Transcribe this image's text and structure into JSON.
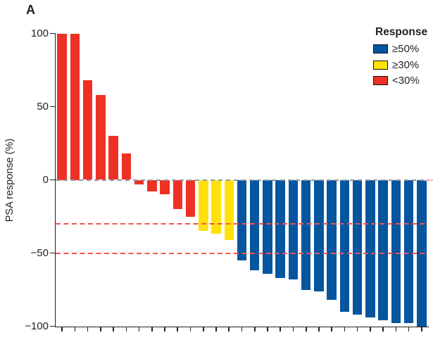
{
  "panel_label": "A",
  "ylabel": "PSA response (%)",
  "legend": {
    "title": "Response",
    "items": [
      {
        "label": "≥50%",
        "color": "#05559f"
      },
      {
        "label": "≥30%",
        "color": "#ffe20a"
      },
      {
        "label": "<30%",
        "color": "#ee3124"
      }
    ]
  },
  "chart_data": {
    "type": "bar",
    "subtype": "waterfall",
    "title": "A",
    "xlabel": "",
    "ylabel": "PSA response (%)",
    "ylim": [
      -100,
      100
    ],
    "yticks": [
      100,
      50,
      0,
      -50,
      -100
    ],
    "ytick_labels": [
      "100",
      "50",
      "0",
      "−50",
      "−100"
    ],
    "grid": false,
    "legend_position": "upper right",
    "legend_title": "Response",
    "legend_entries": [
      {
        "label": "≥50%",
        "color_name": "blue"
      },
      {
        "label": "≥30%",
        "color_name": "yellow"
      },
      {
        "label": "<30%",
        "color_name": "red"
      }
    ],
    "palette": {
      "red": "#ee3124",
      "yellow": "#ffe20a",
      "blue": "#05559f"
    },
    "values": [
      100,
      100,
      68,
      58,
      30,
      18,
      -3,
      -8,
      -10,
      -20,
      -25,
      -35,
      -37,
      -41,
      -55,
      -62,
      -64,
      -67,
      -68,
      -75,
      -76,
      -82,
      -90,
      -92,
      -94,
      -96,
      -98,
      -98,
      -100
    ],
    "bar_colors": [
      "red",
      "red",
      "red",
      "red",
      "red",
      "red",
      "red",
      "red",
      "red",
      "red",
      "red",
      "yellow",
      "yellow",
      "yellow",
      "blue",
      "blue",
      "blue",
      "blue",
      "blue",
      "blue",
      "blue",
      "blue",
      "blue",
      "blue",
      "blue",
      "blue",
      "blue",
      "blue",
      "blue"
    ],
    "reference_lines": {
      "values": [
        -30,
        -50
      ],
      "color": "#f2524e",
      "style": "dashed"
    },
    "zero_line": {
      "value": 0,
      "color": "#8d97a0",
      "style": "dashed"
    }
  }
}
